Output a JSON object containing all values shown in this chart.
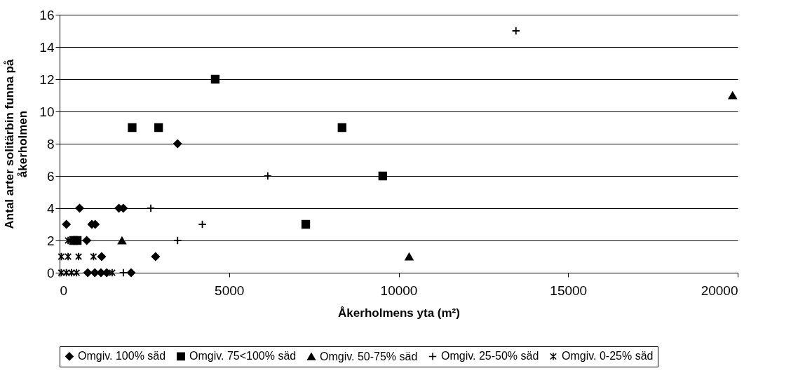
{
  "chart_data": {
    "type": "scatter",
    "xlabel": "Åkerholmens yta (m²)",
    "ylabel": "Antal arter solitärbin funna på åkerholmen",
    "xlim": [
      0,
      20000
    ],
    "xticks": [
      0,
      5000,
      10000,
      15000,
      20000
    ],
    "ylim": [
      0,
      16
    ],
    "yticks": [
      0,
      2,
      4,
      6,
      8,
      10,
      12,
      14,
      16
    ],
    "grid": "y",
    "legend": "bottom",
    "series": [
      {
        "name": "Omgiv. 100% säd",
        "color": "#000000",
        "marker": "diamond",
        "x": [
          200,
          590,
          1750,
          1880,
          950,
          1050,
          800,
          1240,
          2830,
          830,
          1040,
          1220,
          1390,
          2110,
          3480
        ],
        "values": [
          3,
          4,
          4,
          4,
          3,
          3,
          2,
          1,
          1,
          0,
          0,
          0,
          0,
          0,
          8
        ]
      },
      {
        "name": "Omgiv. 75<100% säd",
        "color": "#000000",
        "marker": "square",
        "x": [
          4590,
          2140,
          2920,
          8330,
          9530,
          7260,
          410,
          520
        ],
        "values": [
          12,
          9,
          9,
          9,
          6,
          3,
          2,
          2
        ]
      },
      {
        "name": "Omgiv. 50-75% säd",
        "color": "#000000",
        "marker": "triangle",
        "x": [
          19850,
          1840,
          10310
        ],
        "values": [
          11,
          2,
          1
        ]
      },
      {
        "name": "Omgiv. 25-50% säd",
        "color": "#000000",
        "marker": "cross",
        "x": [
          13460,
          6140,
          2690,
          4210,
          3480,
          1880
        ],
        "values": [
          15,
          6,
          4,
          3,
          2,
          0
        ]
      },
      {
        "name": "Omgiv. 0-25% säd",
        "color": "#000000",
        "marker": "cross",
        "x": [
          50,
          250,
          560,
          1000,
          50,
          200,
          350,
          500,
          1550,
          250
        ],
        "values": [
          1,
          1,
          1,
          1,
          0,
          0,
          0,
          0,
          0,
          2
        ]
      }
    ]
  }
}
